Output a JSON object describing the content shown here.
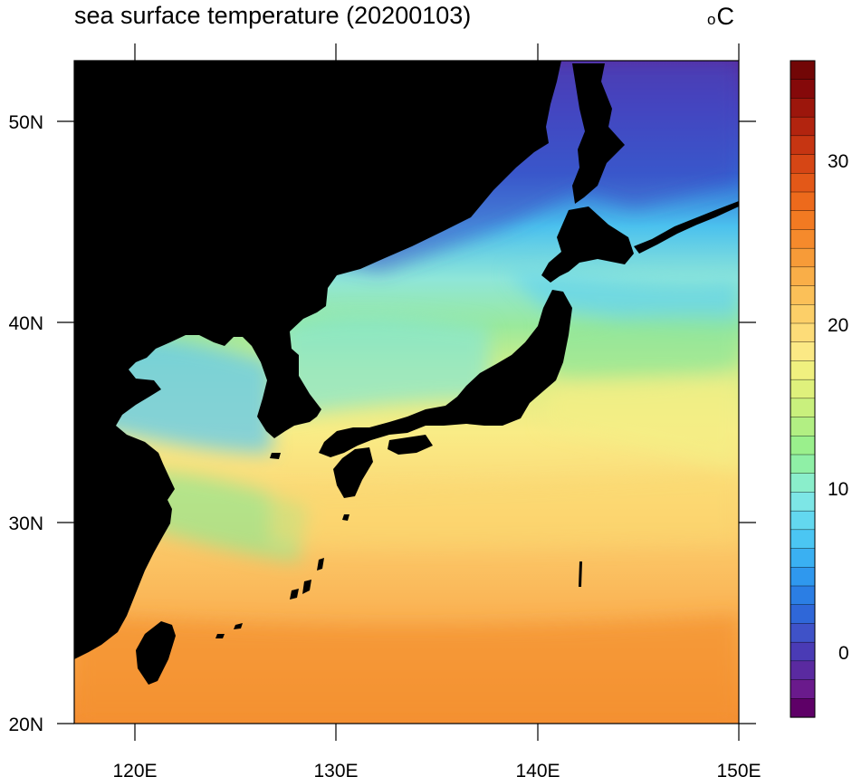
{
  "map": {
    "title": "sea surface temperature (20200103)",
    "units_symbol": "o",
    "units_letter": "C",
    "lon_labels": [
      "120E",
      "130E",
      "140E",
      "150E"
    ],
    "lat_labels": [
      "50N",
      "40N",
      "30N",
      "20N"
    ],
    "land_color": "#000000"
  },
  "colorbar": {
    "labels": [
      "30",
      "20",
      "10",
      "0"
    ],
    "colors": [
      "#5e0067",
      "#6a1a8c",
      "#5a2aa0",
      "#4a3bb5",
      "#3f52c8",
      "#2f67d8",
      "#2b7ee4",
      "#2f98ee",
      "#3ab0f2",
      "#4bc6f3",
      "#63d8ef",
      "#7de6e6",
      "#8aeecb",
      "#8ff0a6",
      "#9af08c",
      "#b2ef83",
      "#c9f07d",
      "#dff17c",
      "#f0f07f",
      "#fbe985",
      "#fddc78",
      "#fccf68",
      "#fbc058",
      "#f9ae48",
      "#f79b38",
      "#f58a2c",
      "#f27a22",
      "#ed6a1c",
      "#e35818",
      "#d64615",
      "#c63512",
      "#b2240f",
      "#9c160c",
      "#85090a",
      "#720606"
    ]
  }
}
